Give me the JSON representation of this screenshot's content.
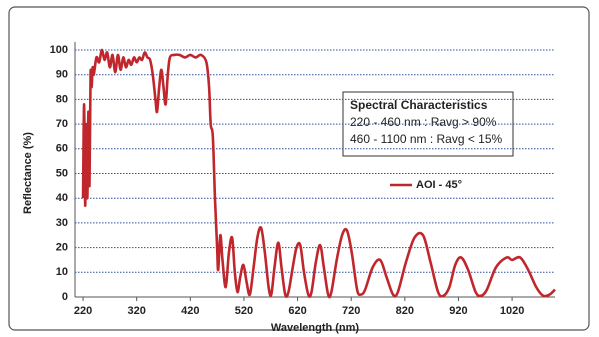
{
  "chart_data": {
    "type": "line",
    "x_label": "Wavelength (nm)",
    "y_label": "Reflectance (%)",
    "annotations": [
      "Spectral Characteristics",
      "220 - 460 nm : Ravg > 90%",
      "460 - 1100 nm : Ravg < 15%"
    ],
    "x": [
      220,
      222,
      224,
      226,
      228,
      230,
      232,
      234,
      236,
      238,
      240,
      245,
      250,
      255,
      260,
      265,
      270,
      275,
      280,
      285,
      290,
      295,
      300,
      305,
      310,
      315,
      320,
      325,
      330,
      335,
      340,
      345,
      350,
      355,
      358,
      362,
      366,
      370,
      374,
      378,
      382,
      390,
      400,
      410,
      420,
      430,
      440,
      450,
      455,
      458,
      462,
      466,
      470,
      472,
      476,
      480,
      486,
      492,
      498,
      503,
      508,
      513,
      519,
      525,
      531,
      538,
      545,
      552,
      559,
      566,
      571,
      577,
      584,
      590,
      597,
      603,
      611,
      618,
      625,
      632,
      640,
      646,
      654,
      662,
      669,
      677,
      683,
      693,
      703,
      712,
      721,
      731,
      738,
      746,
      760,
      774,
      786,
      798,
      807,
      822,
      838,
      854,
      868,
      882,
      892,
      903,
      914,
      925,
      938,
      952,
      962,
      973,
      990,
      1010,
      1020,
      1035,
      1050,
      1065,
      1078,
      1090,
      1100
    ],
    "series": [
      {
        "name": "AOI - 45°",
        "color": "#c0272d",
        "values": [
          40,
          78,
          37,
          70,
          40,
          75,
          45,
          90,
          85,
          93,
          90,
          97,
          95,
          100,
          96,
          99,
          93,
          98,
          91,
          98,
          92,
          97,
          93,
          96,
          94,
          97,
          95,
          97,
          96,
          99,
          97,
          96,
          90,
          80,
          75,
          85,
          92,
          85,
          78,
          90,
          97,
          98,
          98,
          97,
          98,
          97,
          98,
          95,
          85,
          70,
          65,
          40,
          20,
          11,
          25,
          15,
          4,
          18,
          24,
          10,
          2,
          8,
          13,
          6,
          1,
          12,
          24,
          28,
          18,
          4,
          1,
          12,
          22,
          12,
          1,
          2,
          12,
          20,
          21,
          10,
          1,
          2,
          14,
          21,
          12,
          1,
          2,
          15,
          25,
          27,
          18,
          3,
          1,
          3,
          12,
          15,
          8,
          1,
          2,
          14,
          24,
          25,
          14,
          2,
          0.5,
          4,
          13,
          16,
          11,
          2,
          0.5,
          3,
          12,
          16,
          15,
          16,
          11,
          4,
          0.5,
          1,
          3
        ]
      }
    ],
    "xlim": [
      205,
      1100
    ],
    "ylim": [
      0,
      100
    ],
    "xticks": [
      220,
      320,
      420,
      520,
      620,
      720,
      820,
      920,
      1020
    ],
    "yticks": [
      0,
      10,
      20,
      30,
      40,
      50,
      60,
      70,
      80,
      90,
      100
    ],
    "grid": true
  }
}
